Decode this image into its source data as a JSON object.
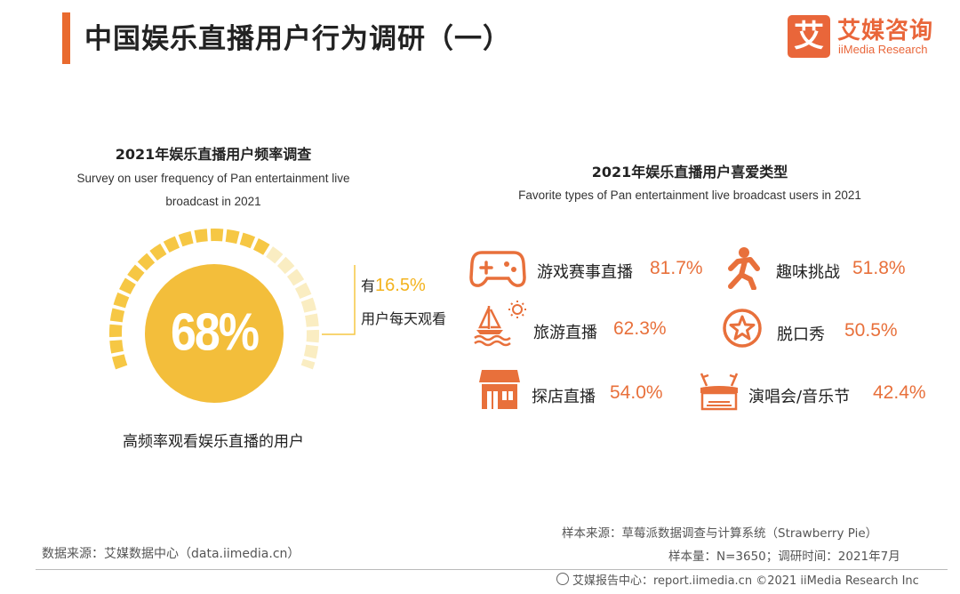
{
  "header": {
    "title": "中国娱乐直播用户行为调研（一）",
    "logo_mark": "艾",
    "logo_name": "艾媒咨询",
    "logo_en": "iiMedia Research"
  },
  "colors": {
    "accent": "#e96a2e",
    "gauge_fill": "#f3be3b",
    "gauge_ring": "#f6c744",
    "gauge_ring_light": "#faedc2",
    "highlight": "#f3b31e",
    "value": "#e8703b"
  },
  "chart_data": [
    {
      "type": "gauge",
      "title": "2021年娱乐直播用户频率调查",
      "subtitle_line1": "Survey on user frequency of Pan entertainment live",
      "subtitle_line2": "broadcast in 2021",
      "value_label": "68%",
      "value": 68,
      "caption": "高频率观看娱乐直播的用户",
      "callout": {
        "prefix": "有",
        "value": "16.5%",
        "value_number": 16.5,
        "suffix": "用户每天观看"
      }
    },
    {
      "type": "table",
      "title": "2021年娱乐直播用户喜爱类型",
      "subtitle": "Favorite types of Pan entertainment live broadcast users in 2021",
      "items": [
        {
          "label": "游戏赛事直播",
          "value": "81.7%",
          "icon": "gamepad-icon"
        },
        {
          "label": "趣味挑战",
          "value": "51.8%",
          "icon": "runner-icon"
        },
        {
          "label": "旅游直播",
          "value": "62.3%",
          "icon": "sailboat-icon"
        },
        {
          "label": "脱口秀",
          "value": "50.5%",
          "icon": "star-icon"
        },
        {
          "label": "探店直播",
          "value": "54.0%",
          "icon": "shop-icon"
        },
        {
          "label": "演唱会/音乐节",
          "value": "42.4%",
          "icon": "concert-icon"
        }
      ]
    }
  ],
  "footer": {
    "source": "数据来源：艾媒数据中心（data.iimedia.cn）",
    "sample_source": "样本来源：草莓派数据调查与计算系统（Strawberry Pie）",
    "sample_size": "样本量：N=3650；调研时间：2021年7月",
    "copyright": "艾媒报告中心：report.iimedia.cn  ©2021  iiMedia Research  Inc"
  }
}
